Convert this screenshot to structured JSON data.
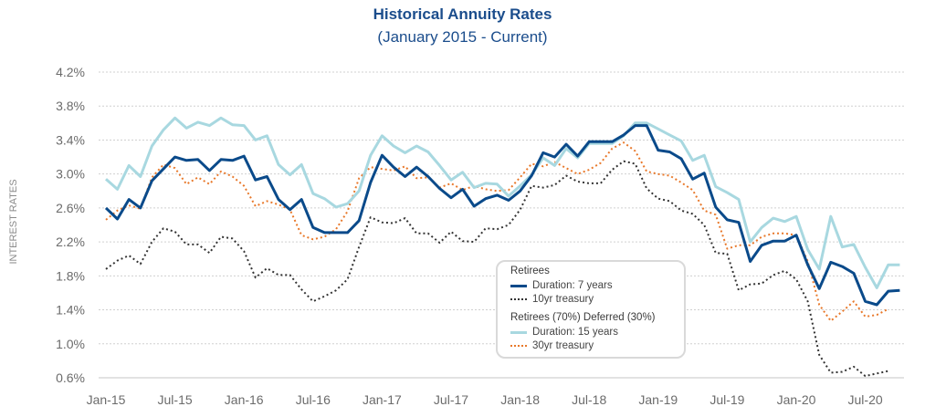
{
  "chart_data": {
    "type": "line",
    "title": "Historical Annuity Rates",
    "subtitle": "(January 2015 - Current)",
    "xlabel": "",
    "ylabel": "INTEREST RATES",
    "ylim": [
      0.6,
      4.2
    ],
    "yticks": [
      4.2,
      3.8,
      3.4,
      3.0,
      2.6,
      2.2,
      1.8,
      1.4,
      1.0,
      0.6
    ],
    "ytick_labels": [
      "4.2%",
      "3.8%",
      "3.4%",
      "3.0%",
      "2.6%",
      "2.2%",
      "1.8%",
      "1.4%",
      "1.0%",
      "0.6%"
    ],
    "xtick_labels": [
      "Jan-15",
      "Jul-15",
      "Jan-16",
      "Jul-16",
      "Jan-17",
      "Jul-17",
      "Jan-18",
      "Jul-18",
      "Jan-19",
      "Jul-19",
      "Jan-20",
      "Jul-20"
    ],
    "x_start": "Jan-15",
    "x_unit": "month",
    "grid": true,
    "legend_position": "bottom-center",
    "legend_groups": [
      {
        "heading": "Retirees",
        "items": [
          {
            "label": "Duration: 7 years",
            "series": 0
          },
          {
            "label": "10yr treasury",
            "series": 1
          }
        ]
      },
      {
        "heading": "Retirees (70%) Deferred (30%)",
        "items": [
          {
            "label": "Duration: 15 years",
            "series": 2
          },
          {
            "label": "30yr treasury",
            "series": 3
          }
        ]
      }
    ],
    "series": [
      {
        "name": "Duration: 7 years",
        "color": "#0a4a8a",
        "style": "solid",
        "values": [
          2.6,
          2.47,
          2.7,
          2.6,
          2.92,
          3.06,
          3.2,
          3.16,
          3.17,
          3.04,
          3.17,
          3.16,
          3.21,
          2.93,
          2.97,
          2.7,
          2.58,
          2.7,
          2.37,
          2.31,
          2.31,
          2.31,
          2.45,
          2.9,
          3.22,
          3.08,
          2.97,
          3.08,
          2.97,
          2.83,
          2.72,
          2.82,
          2.62,
          2.71,
          2.75,
          2.69,
          2.8,
          2.98,
          3.25,
          3.2,
          3.35,
          3.21,
          3.38,
          3.38,
          3.38,
          3.46,
          3.57,
          3.57,
          3.28,
          3.26,
          3.18,
          2.94,
          3.01,
          2.61,
          2.46,
          2.43,
          1.97,
          2.16,
          2.21,
          2.21,
          2.28,
          1.93,
          1.65,
          1.96,
          1.91,
          1.83,
          1.5,
          1.46,
          1.62,
          1.63
        ]
      },
      {
        "name": "10yr treasury",
        "color": "#333333",
        "style": "dotted",
        "values": [
          1.88,
          1.98,
          2.04,
          1.94,
          2.2,
          2.36,
          2.32,
          2.17,
          2.17,
          2.07,
          2.26,
          2.24,
          2.09,
          1.78,
          1.89,
          1.81,
          1.81,
          1.64,
          1.5,
          1.56,
          1.63,
          1.76,
          2.14,
          2.49,
          2.43,
          2.42,
          2.48,
          2.3,
          2.3,
          2.19,
          2.32,
          2.21,
          2.2,
          2.36,
          2.35,
          2.4,
          2.58,
          2.86,
          2.84,
          2.87,
          2.98,
          2.91,
          2.89,
          2.89,
          3.05,
          3.15,
          3.12,
          2.83,
          2.71,
          2.68,
          2.57,
          2.53,
          2.4,
          2.07,
          2.06,
          1.63,
          1.7,
          1.71,
          1.81,
          1.86,
          1.76,
          1.5,
          0.87,
          0.66,
          0.67,
          0.73,
          0.62,
          0.65,
          0.68
        ]
      },
      {
        "name": "Duration: 15 years",
        "color": "#a8d8e0",
        "style": "solid",
        "values": [
          2.94,
          2.82,
          3.1,
          2.97,
          3.33,
          3.52,
          3.66,
          3.54,
          3.61,
          3.57,
          3.66,
          3.58,
          3.57,
          3.4,
          3.45,
          3.11,
          2.99,
          3.11,
          2.77,
          2.71,
          2.61,
          2.65,
          2.8,
          3.22,
          3.45,
          3.33,
          3.25,
          3.33,
          3.26,
          3.1,
          2.93,
          3.02,
          2.84,
          2.89,
          2.88,
          2.74,
          2.86,
          2.99,
          3.19,
          3.1,
          3.3,
          3.19,
          3.36,
          3.36,
          3.36,
          3.45,
          3.6,
          3.6,
          3.53,
          3.46,
          3.39,
          3.16,
          3.22,
          2.85,
          2.78,
          2.7,
          2.2,
          2.37,
          2.48,
          2.44,
          2.5,
          2.11,
          1.88,
          2.5,
          2.14,
          2.17,
          1.9,
          1.66,
          1.93,
          1.93
        ]
      },
      {
        "name": "30yr treasury",
        "color": "#e8782a",
        "style": "dotted",
        "values": [
          2.46,
          2.57,
          2.63,
          2.59,
          2.96,
          3.11,
          3.07,
          2.88,
          2.96,
          2.88,
          3.03,
          2.97,
          2.86,
          2.62,
          2.68,
          2.64,
          2.58,
          2.28,
          2.23,
          2.26,
          2.35,
          2.56,
          2.95,
          3.08,
          3.06,
          3.04,
          3.09,
          2.95,
          2.96,
          2.84,
          2.89,
          2.81,
          2.86,
          2.82,
          2.8,
          2.81,
          2.96,
          3.12,
          3.09,
          3.14,
          3.07,
          3.0,
          3.05,
          3.13,
          3.3,
          3.37,
          3.27,
          3.03,
          3.0,
          2.98,
          2.9,
          2.81,
          2.57,
          2.52,
          2.12,
          2.16,
          2.16,
          2.26,
          2.3,
          2.3,
          2.28,
          1.97,
          1.46,
          1.27,
          1.38,
          1.5,
          1.32,
          1.34,
          1.41
        ]
      }
    ]
  }
}
